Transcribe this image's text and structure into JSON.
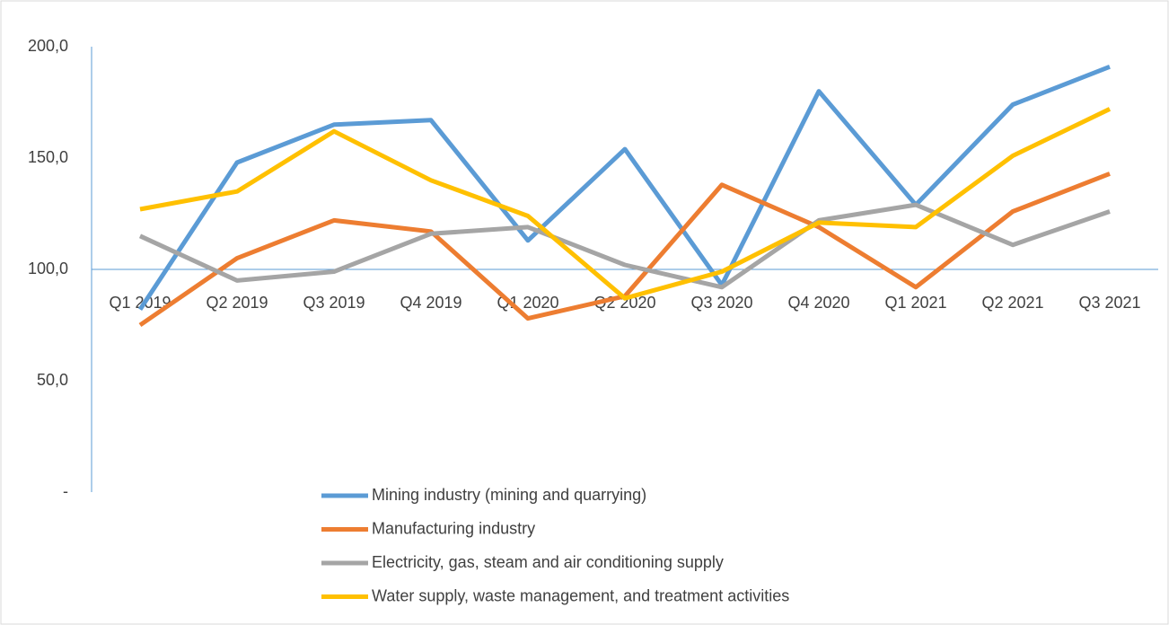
{
  "chart_data": {
    "type": "line",
    "categories": [
      "Q1 2019",
      "Q2 2019",
      "Q3 2019",
      "Q4 2019",
      "Q1 2020",
      "Q2 2020",
      "Q3 2020",
      "Q4 2020",
      "Q1 2021",
      "Q2 2021",
      "Q3 2021"
    ],
    "series": [
      {
        "name": "Mining industry (mining and quarrying)",
        "color": "#5b9bd5",
        "values": [
          82,
          148,
          165,
          167,
          113,
          154,
          93,
          180,
          129,
          174,
          191
        ]
      },
      {
        "name": "Manufacturing industry",
        "color": "#ed7d31",
        "values": [
          75,
          105,
          122,
          117,
          78,
          88,
          138,
          119,
          92,
          126,
          143
        ]
      },
      {
        "name": "Electricity, gas, steam and air conditioning supply",
        "color": "#a5a5a5",
        "values": [
          115,
          95,
          99,
          116,
          119,
          102,
          92,
          122,
          129,
          111,
          126
        ]
      },
      {
        "name": "Water supply, waste management, and treatment activities",
        "color": "#ffc000",
        "values": [
          127,
          135,
          162,
          140,
          124,
          87,
          99,
          121,
          119,
          151,
          172
        ]
      }
    ],
    "ylim": [
      0,
      200
    ],
    "yticks": [
      {
        "value": 0,
        "label": "-"
      },
      {
        "value": 50,
        "label": "50,0"
      },
      {
        "value": 100,
        "label": "100,0"
      },
      {
        "value": 150,
        "label": "150,0"
      },
      {
        "value": 200,
        "label": "200,0"
      }
    ],
    "x_axis_crosses_at": 100,
    "grid": false,
    "legend": "bottom"
  }
}
